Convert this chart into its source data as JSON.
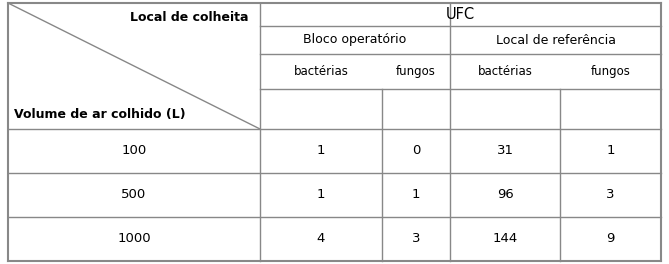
{
  "header_ufc": "UFC",
  "header_bloco": "Bloco operatório",
  "header_local": "Local de referência",
  "col_bacterias": "bactérias",
  "col_fungos": "fungos",
  "label_volume": "Volume de ar colhido (L)",
  "label_local": "Local de colheita",
  "rows": [
    {
      "volume": "100",
      "bloco_bact": "1",
      "bloco_fung": "0",
      "local_bact": "31",
      "local_fung": "1"
    },
    {
      "volume": "500",
      "bloco_bact": "1",
      "bloco_fung": "1",
      "local_bact": "96",
      "local_fung": "3"
    },
    {
      "volume": "1000",
      "bloco_bact": "4",
      "bloco_fung": "3",
      "local_bact": "144",
      "local_fung": "9"
    }
  ],
  "line_color": "#888888",
  "bg_color": "#ffffff",
  "text_color": "#000000",
  "fontsize": 8.5,
  "fontsize_data": 9.5
}
